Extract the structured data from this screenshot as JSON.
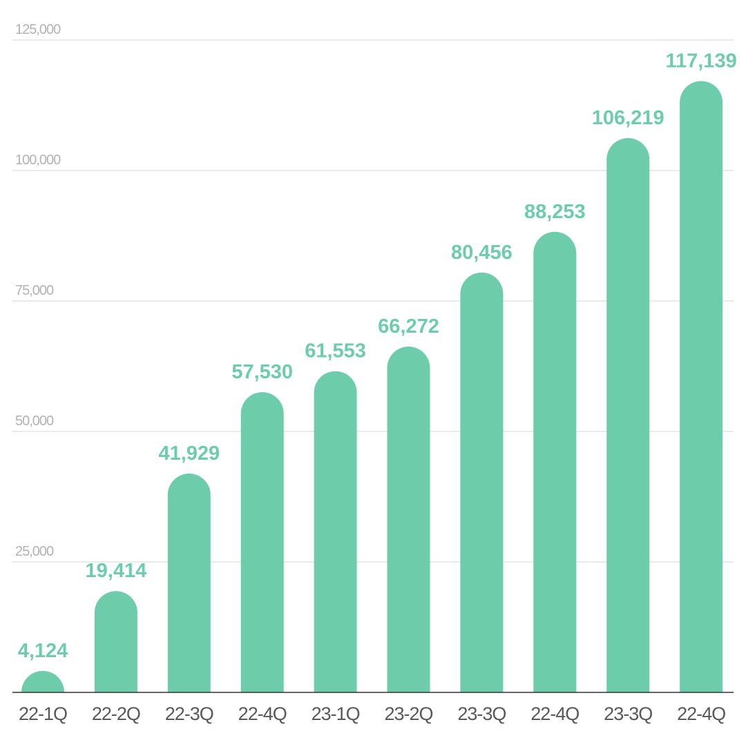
{
  "colors": {
    "bar": "#6dcdab",
    "label": "#6dcdab",
    "grid": "#dcdcdc",
    "axis_text": "#b3b3b3",
    "category_text": "#595959",
    "baseline": "#333333"
  },
  "chart_data": {
    "type": "bar",
    "categories": [
      "22-1Q",
      "22-2Q",
      "22-3Q",
      "22-4Q",
      "23-1Q",
      "23-2Q",
      "23-3Q",
      "22-4Q",
      "23-3Q",
      "22-4Q"
    ],
    "values": [
      4124,
      19414,
      41929,
      57530,
      61553,
      66272,
      80456,
      88253,
      106219,
      117139
    ],
    "value_labels": [
      "4,124",
      "19,414",
      "41,929",
      "57,530",
      "61,553",
      "66,272",
      "80,456",
      "88,253",
      "106,219",
      "117,139"
    ],
    "title": "",
    "xlabel": "",
    "ylabel": "",
    "ylim": [
      0,
      125000
    ],
    "yticks": [
      25000,
      50000,
      75000,
      100000,
      125000
    ],
    "ytick_labels": [
      "25,000",
      "50,000",
      "75,000",
      "100,000",
      "125,000"
    ],
    "grid": true,
    "legend": "none"
  }
}
